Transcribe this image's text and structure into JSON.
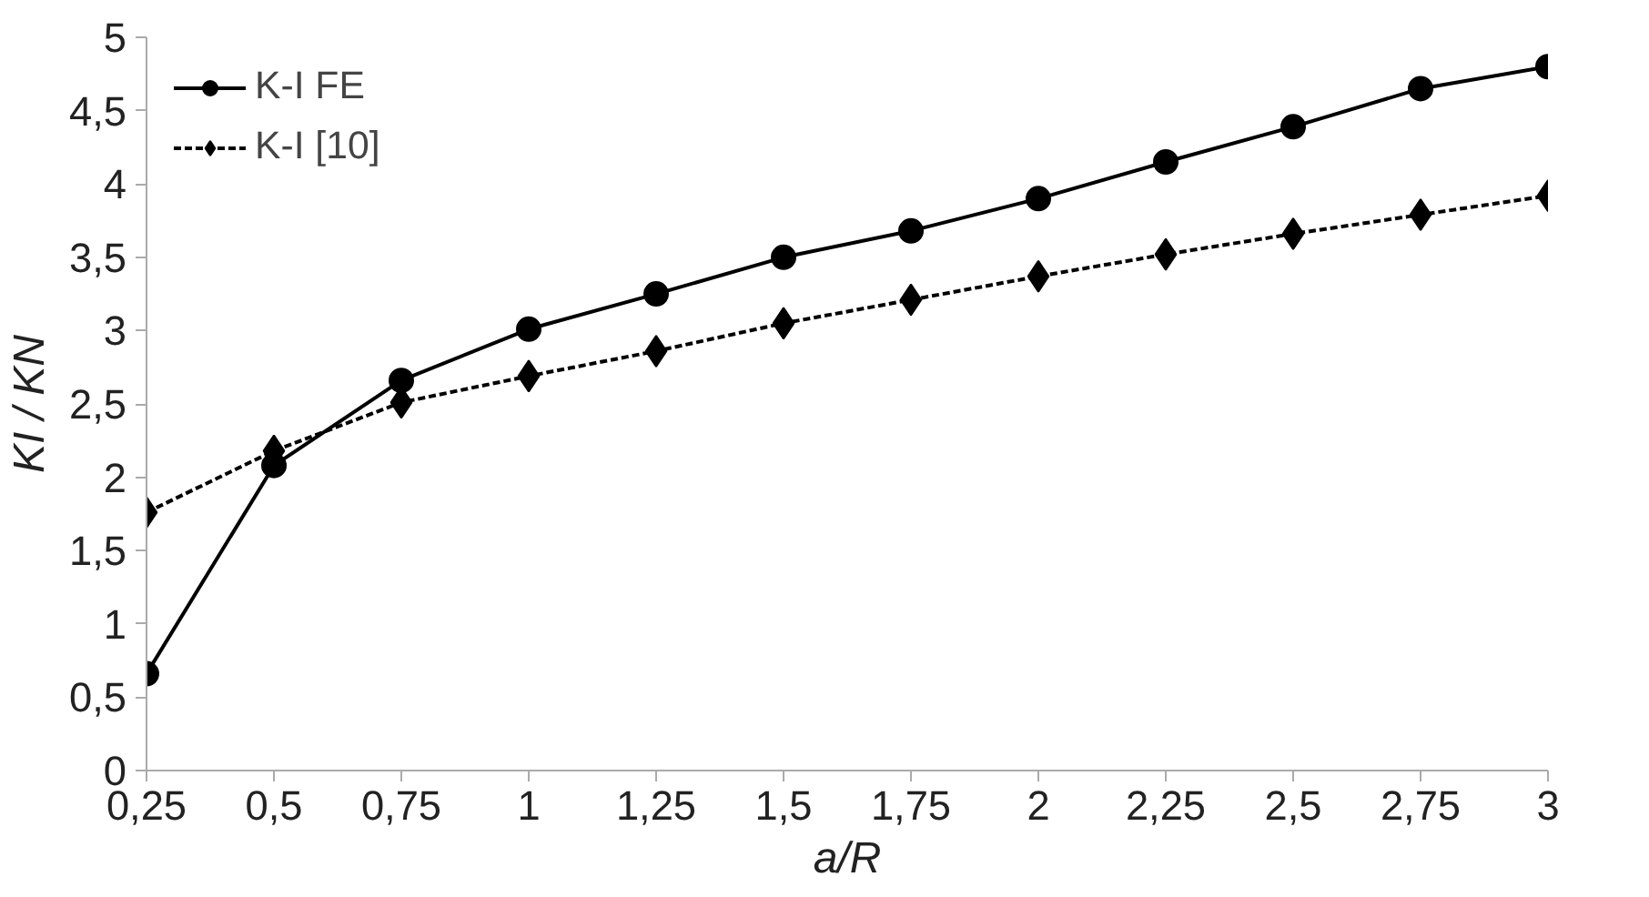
{
  "chart_data": {
    "type": "line",
    "xlabel": "a/R",
    "ylabel": "KI / KN",
    "x": [
      0.25,
      0.5,
      0.75,
      1,
      1.25,
      1.5,
      1.75,
      2,
      2.25,
      2.5,
      2.75,
      3
    ],
    "series": [
      {
        "name": "K-I FE",
        "color": "#000000",
        "marker": "circle",
        "line_style": "solid",
        "values": [
          0.66,
          2.08,
          2.66,
          3.01,
          3.25,
          3.5,
          3.68,
          3.9,
          4.15,
          4.39,
          4.65,
          4.8
        ]
      },
      {
        "name": "K-I [10]",
        "color": "#000000",
        "marker": "diamond",
        "line_style": "dashed",
        "values": [
          1.76,
          2.18,
          2.51,
          2.69,
          2.86,
          3.05,
          3.21,
          3.37,
          3.52,
          3.66,
          3.79,
          3.92
        ]
      }
    ],
    "xlim": [
      0.25,
      3
    ],
    "xticks": [
      {
        "value": 0.25,
        "label": "0,25"
      },
      {
        "value": 0.5,
        "label": "0,5"
      },
      {
        "value": 0.75,
        "label": "0,75"
      },
      1,
      {
        "value": 1.25,
        "label": "1,25"
      },
      {
        "value": 1.5,
        "label": "1,5"
      },
      {
        "value": 1.75,
        "label": "1,75"
      },
      2,
      {
        "value": 2.25,
        "label": "2,25"
      },
      {
        "value": 2.5,
        "label": "2,5"
      },
      {
        "value": 2.75,
        "label": "2,75"
      },
      3
    ],
    "ylim": [
      0,
      5
    ],
    "yticks": [
      0,
      {
        "value": 0.5,
        "label": "0,5"
      },
      1,
      {
        "value": 1.5,
        "label": "1,5"
      },
      2,
      {
        "value": 2.5,
        "label": "2,5"
      },
      3,
      {
        "value": 3.5,
        "label": "3,5"
      },
      4,
      {
        "value": 4.5,
        "label": "4,5"
      },
      5
    ],
    "grid": false,
    "legend": "top left"
  }
}
